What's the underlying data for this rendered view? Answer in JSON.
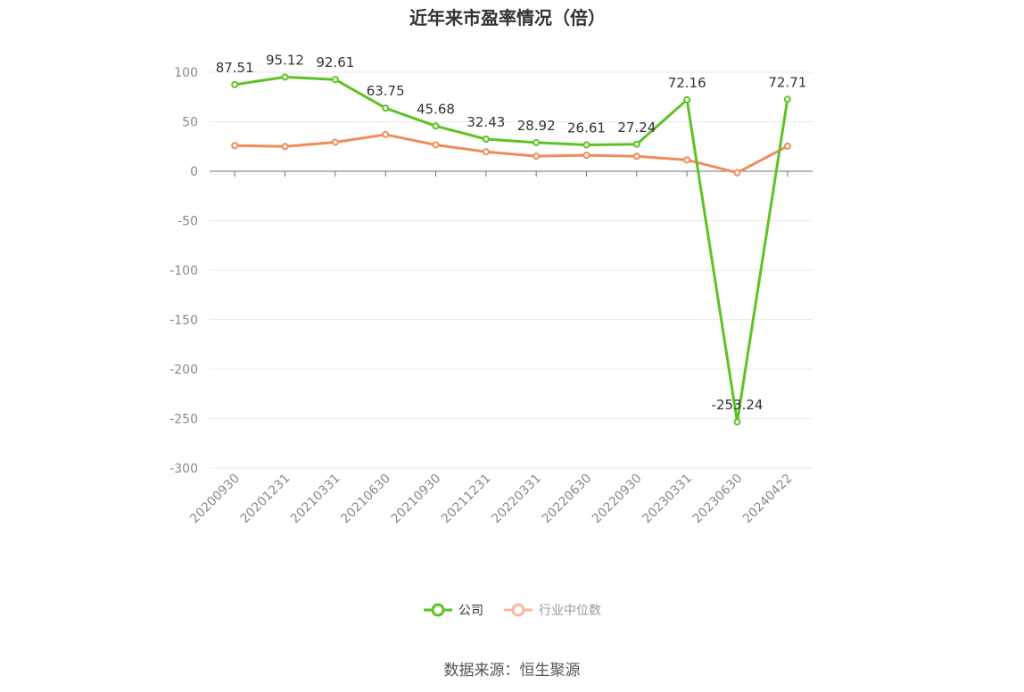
{
  "title": "近年来市盈率情况（倍）",
  "source": "数据来源：恒生聚源",
  "chart_data": {
    "type": "line",
    "title": "近年来市盈率情况（倍）",
    "categories": [
      "20200930",
      "20201231",
      "20210331",
      "20210630",
      "20210930",
      "20211231",
      "20220331",
      "20220630",
      "20220930",
      "20230331",
      "20230630",
      "20240422"
    ],
    "series": [
      {
        "name": "公司",
        "color": "#5ec224",
        "values": [
          87.51,
          95.12,
          92.61,
          63.75,
          45.68,
          32.43,
          28.92,
          26.61,
          27.24,
          72.16,
          -253.24,
          72.71
        ],
        "labels": [
          "87.51",
          "95.12",
          "92.61",
          "63.75",
          "45.68",
          "32.43",
          "28.92",
          "26.61",
          "27.24",
          "72.16",
          "-253.24",
          "72.71"
        ]
      },
      {
        "name": "行业中位数",
        "color": "#f08c5a",
        "values": [
          25.9,
          25.0,
          29.3,
          37.0,
          26.6,
          19.6,
          15.2,
          16.1,
          15.1,
          11.4,
          -1.5,
          25.3
        ]
      }
    ],
    "yticks": [
      100,
      50,
      0,
      -50,
      -100,
      -150,
      -200,
      -250,
      -300
    ],
    "ylim": [
      -300,
      100
    ],
    "legend": "bottom",
    "grid": true
  }
}
